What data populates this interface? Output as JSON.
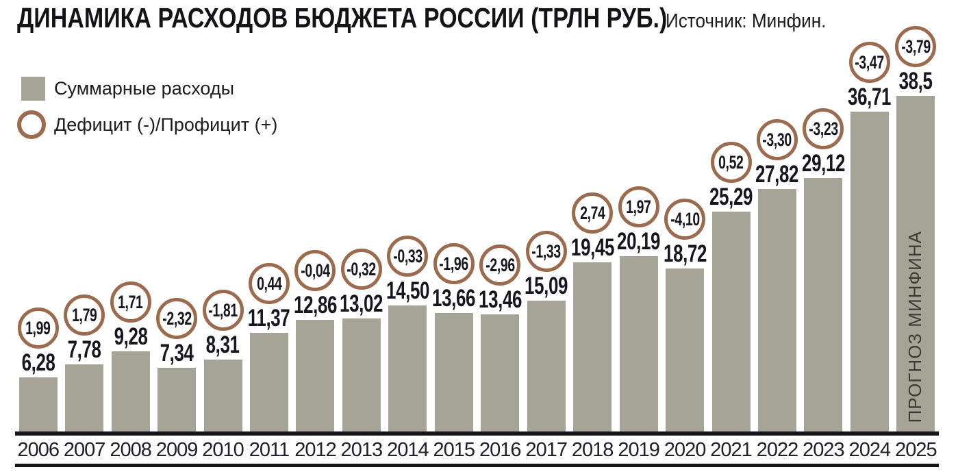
{
  "title": "ДИНАМИКА РАСХОДОВ БЮДЖЕТА РОССИИ (ТРЛН РУБ.)",
  "source": "Источник: Минфин.",
  "legend": {
    "expenses": "Суммарные расходы",
    "balance": "Дефицит (-)/Профицит (+)"
  },
  "forecast_label": "ПРОГНОЗ МИНФИНА",
  "colors": {
    "bar": "#a5a496",
    "circle_stroke": "#9c6a4c",
    "text_dark": "#16161e",
    "axis_line": "#15151a"
  },
  "chart_data": {
    "type": "bar",
    "title": "ДИНАМИКА РАСХОДОВ БЮДЖЕТА РОССИИ (ТРЛН РУБ.)",
    "xlabel": "",
    "ylabel": "",
    "ylim": [
      0,
      40
    ],
    "grid": false,
    "legend_position": "top-left",
    "categories": [
      "2006",
      "2007",
      "2008",
      "2009",
      "2010",
      "2011",
      "2012",
      "2013",
      "2014",
      "2015",
      "2016",
      "2017",
      "2018",
      "2019",
      "2020",
      "2021",
      "2022",
      "2023",
      "2024",
      "2025"
    ],
    "series": [
      {
        "name": "Суммарные расходы",
        "values": [
          6.28,
          7.78,
          9.28,
          7.34,
          8.31,
          11.37,
          12.86,
          13.02,
          14.5,
          13.66,
          13.46,
          15.09,
          19.45,
          20.19,
          18.72,
          25.29,
          27.82,
          29.12,
          36.71,
          38.5
        ]
      },
      {
        "name": "Дефицит (-)/Профицит (+)",
        "values": [
          1.99,
          1.79,
          1.71,
          -2.32,
          -1.81,
          0.44,
          -0.04,
          -0.32,
          -0.33,
          -1.96,
          -2.96,
          -1.33,
          2.74,
          1.97,
          -4.1,
          0.52,
          -3.3,
          -3.23,
          -3.47,
          -3.79
        ]
      }
    ],
    "labels": {
      "expenses": [
        "6,28",
        "7,78",
        "9,28",
        "7,34",
        "8,31",
        "11,37",
        "12,86",
        "13,02",
        "14,50",
        "13,66",
        "13,46",
        "15,09",
        "19,45",
        "20,19",
        "18,72",
        "25,29",
        "27,82",
        "29,12",
        "36,71",
        "38,5"
      ],
      "balance": [
        "1,99",
        "1,79",
        "1,71",
        "-2,32",
        "-1,81",
        "0,44",
        "-0,04",
        "-0,32",
        "-0,33",
        "-1,96",
        "-2,96",
        "-1,33",
        "2,74",
        "1,97",
        "-4,10",
        "0,52",
        "-3,30",
        "-3,23",
        "-3,47",
        "-3,79"
      ]
    },
    "annotations": [
      {
        "target": "2025",
        "text": "ПРОГНОЗ МИНФИНА",
        "orientation": "vertical-bottom-up"
      }
    ]
  }
}
